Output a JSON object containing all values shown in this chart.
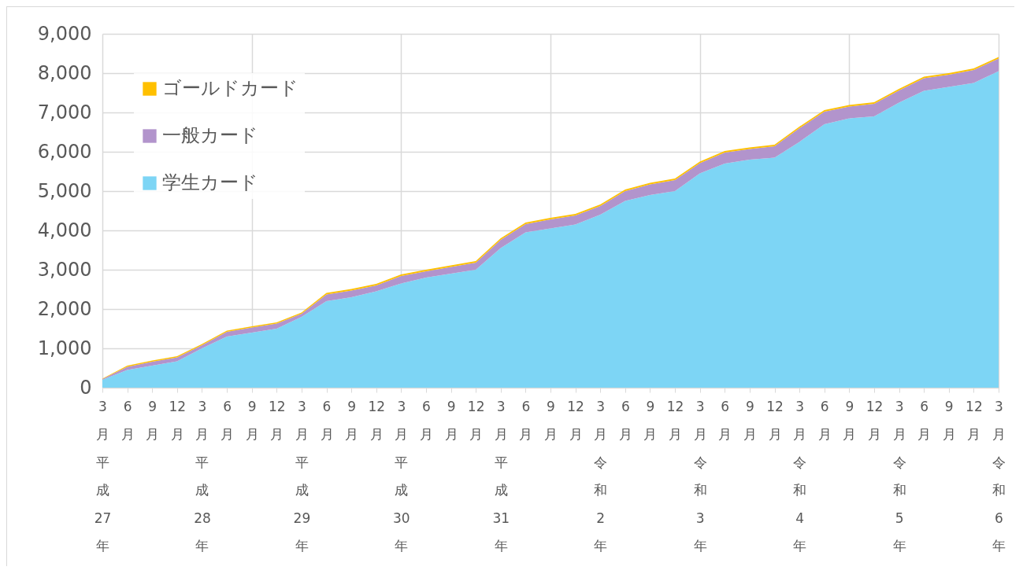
{
  "chart_data": {
    "type": "area",
    "stacked": true,
    "categories": [
      "3月平成27年",
      "6月",
      "9月",
      "12月",
      "3月平成28年",
      "6月",
      "9月",
      "12月",
      "3月平成29年",
      "6月",
      "9月",
      "12月",
      "3月平成30年",
      "6月",
      "9月",
      "12月",
      "3月平成31年",
      "6月",
      "9月",
      "12月",
      "3月令和2年",
      "6月",
      "9月",
      "12月",
      "3月令和3年",
      "6月",
      "9月",
      "12月",
      "3月令和4年",
      "6月",
      "9月",
      "12月",
      "3月令和5年",
      "6月",
      "9月",
      "12月",
      "3月令和6年"
    ],
    "series": [
      {
        "name": "学生カード",
        "color": "#7dd5f5",
        "values": [
          200,
          450,
          560,
          670,
          1000,
          1300,
          1400,
          1500,
          1800,
          2200,
          2300,
          2450,
          2650,
          2800,
          2900,
          3000,
          3550,
          3950,
          4050,
          4150,
          4400,
          4750,
          4900,
          5000,
          5450,
          5700,
          5800,
          5850,
          6250,
          6700,
          6850,
          6900,
          7250,
          7550,
          7650,
          7750,
          8050
        ]
      },
      {
        "name": "一般カード",
        "color": "#b294cc",
        "values": [
          20,
          80,
          100,
          100,
          80,
          120,
          130,
          130,
          80,
          170,
          170,
          150,
          190,
          160,
          170,
          180,
          210,
          210,
          230,
          230,
          220,
          250,
          270,
          280,
          260,
          280,
          270,
          290,
          350,
          320,
          300,
          320,
          310,
          320,
          310,
          330,
          320
        ]
      },
      {
        "name": "ゴールドカード",
        "color": "#ffc000",
        "values": [
          10,
          30,
          30,
          30,
          30,
          30,
          30,
          30,
          30,
          40,
          40,
          40,
          40,
          40,
          40,
          40,
          40,
          40,
          40,
          40,
          40,
          40,
          40,
          40,
          40,
          40,
          40,
          40,
          40,
          40,
          40,
          40,
          40,
          40,
          40,
          40,
          40
        ]
      }
    ],
    "ylim": [
      0,
      9000
    ],
    "yticks": [
      0,
      {
        "value": 1000,
        "label": "1,000"
      },
      {
        "value": 2000,
        "label": "2,000"
      },
      {
        "value": 3000,
        "label": "3,000"
      },
      {
        "value": 4000,
        "label": "4,000"
      },
      {
        "value": 5000,
        "label": "5,000"
      },
      {
        "value": 6000,
        "label": "6,000"
      },
      {
        "value": 7000,
        "label": "7,000"
      },
      {
        "value": 8000,
        "label": "8,000"
      },
      {
        "value": 9000,
        "label": "9,000"
      }
    ],
    "grid": true,
    "legend": "top left"
  }
}
